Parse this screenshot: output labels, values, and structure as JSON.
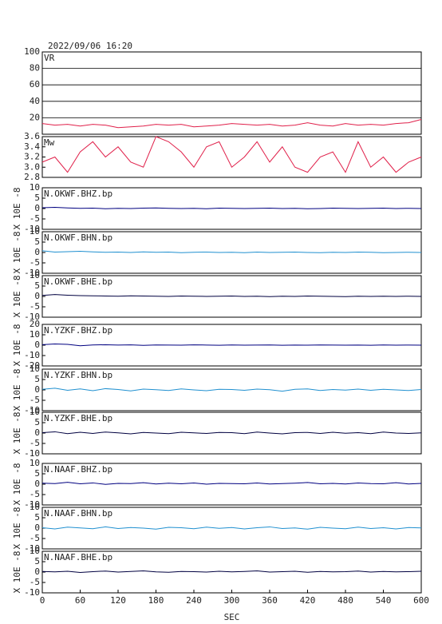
{
  "chart_data": [
    {
      "type": "line",
      "title": "2022/09/06 16:20",
      "xlim": [
        0,
        600
      ],
      "ylim": [
        0,
        100
      ],
      "yticks": [
        20,
        40,
        60,
        80,
        100
      ],
      "grid": true,
      "x": [
        0,
        20,
        40,
        60,
        80,
        100,
        120,
        140,
        160,
        180,
        200,
        220,
        240,
        260,
        280,
        300,
        320,
        340,
        360,
        380,
        400,
        420,
        440,
        460,
        480,
        500,
        520,
        540,
        560,
        580,
        600
      ],
      "series": [
        {
          "name": "VR",
          "color": "#e0204a",
          "values": [
            13,
            11,
            12,
            10,
            12,
            11,
            8,
            9,
            10,
            12,
            11,
            12,
            9,
            10,
            11,
            13,
            12,
            11,
            12,
            10,
            11,
            14,
            11,
            10,
            13,
            11,
            12,
            11,
            13,
            14,
            18
          ]
        }
      ]
    },
    {
      "type": "line",
      "xlim": [
        0,
        600
      ],
      "ylim": [
        2.8,
        3.6
      ],
      "yticks": [
        2.8,
        {
          "value": 3,
          "label": "3.0"
        },
        3.2,
        3.4,
        3.6
      ],
      "x": [
        0,
        20,
        40,
        60,
        80,
        100,
        120,
        140,
        160,
        180,
        200,
        220,
        240,
        260,
        280,
        300,
        320,
        340,
        360,
        380,
        400,
        420,
        440,
        460,
        480,
        500,
        520,
        540,
        560,
        580,
        600
      ],
      "series": [
        {
          "name": "Mw",
          "color": "#e0204a",
          "values": [
            3.1,
            3.2,
            2.9,
            3.3,
            3.5,
            3.2,
            3.4,
            3.1,
            3.0,
            3.6,
            3.5,
            3.3,
            3.0,
            3.4,
            3.5,
            3.0,
            3.2,
            3.5,
            3.1,
            3.4,
            3.0,
            2.9,
            3.2,
            3.3,
            2.9,
            3.5,
            3.0,
            3.2,
            2.9,
            3.1,
            3.2
          ]
        }
      ]
    },
    {
      "type": "line",
      "xlim": [
        0,
        600
      ],
      "ylim": [
        -10,
        10
      ],
      "yticks": [
        -10,
        -5,
        0,
        5,
        10
      ],
      "ylabel": "X 10E -8",
      "x": [
        0,
        20,
        40,
        60,
        80,
        100,
        120,
        140,
        160,
        180,
        200,
        220,
        240,
        260,
        280,
        300,
        320,
        340,
        360,
        380,
        400,
        420,
        440,
        460,
        480,
        500,
        520,
        540,
        560,
        580,
        600
      ],
      "series": [
        {
          "name": "N.OKWF.BHZ.bp",
          "color": "#000080",
          "values": [
            0.4,
            0.6,
            0.3,
            0.1,
            0.2,
            -0.1,
            0.1,
            0.0,
            0.2,
            0.3,
            0.1,
            0.0,
            0.1,
            -0.1,
            0.2,
            0.1,
            0.0,
            0.1,
            0.2,
            0.0,
            0.1,
            -0.1,
            0.0,
            0.2,
            0.1,
            0.0,
            0.1,
            0.2,
            0.0,
            0.1,
            0.0
          ]
        }
      ]
    },
    {
      "type": "line",
      "xlim": [
        0,
        600
      ],
      "ylim": [
        -10,
        10
      ],
      "yticks": [
        -10,
        -5,
        0,
        5,
        10
      ],
      "ylabel": "X 10E -8",
      "x": [
        0,
        20,
        40,
        60,
        80,
        100,
        120,
        140,
        160,
        180,
        200,
        220,
        240,
        260,
        280,
        300,
        320,
        340,
        360,
        380,
        400,
        420,
        440,
        460,
        480,
        500,
        520,
        540,
        560,
        580,
        600
      ],
      "series": [
        {
          "name": "N.OKWF.BHN.bp",
          "color": "#2090d0",
          "values": [
            0.8,
            0.2,
            0.4,
            0.6,
            0.3,
            0.1,
            0.2,
            0.0,
            0.3,
            0.1,
            0.2,
            -0.1,
            0.1,
            0.2,
            0.0,
            0.1,
            -0.1,
            0.2,
            0.0,
            0.1,
            0.2,
            0.0,
            -0.1,
            0.1,
            0.0,
            0.2,
            0.1,
            -0.1,
            0.0,
            0.1,
            0.0
          ]
        }
      ]
    },
    {
      "type": "line",
      "xlim": [
        0,
        600
      ],
      "ylim": [
        -10,
        10
      ],
      "yticks": [
        -10,
        -5,
        0,
        5,
        10
      ],
      "ylabel": "X 10E -8",
      "x": [
        0,
        20,
        40,
        60,
        80,
        100,
        120,
        140,
        160,
        180,
        200,
        220,
        240,
        260,
        280,
        300,
        320,
        340,
        360,
        380,
        400,
        420,
        440,
        460,
        480,
        500,
        520,
        540,
        560,
        580,
        600
      ],
      "series": [
        {
          "name": "N.OKWF.BHE.bp",
          "color": "#000040",
          "values": [
            0.5,
            0.9,
            0.6,
            0.4,
            0.3,
            0.2,
            0.1,
            0.3,
            0.2,
            0.1,
            0.0,
            0.2,
            0.1,
            0.0,
            0.1,
            0.2,
            0.0,
            0.1,
            -0.1,
            0.1,
            0.0,
            0.2,
            0.1,
            0.0,
            -0.1,
            0.1,
            0.0,
            0.1,
            0.0,
            0.1,
            0.0
          ]
        }
      ]
    },
    {
      "type": "line",
      "xlim": [
        0,
        600
      ],
      "ylim": [
        -20,
        20
      ],
      "yticks": [
        -20,
        -10,
        0,
        10,
        20
      ],
      "ylabel": "X 10E -8",
      "x": [
        0,
        20,
        40,
        60,
        80,
        100,
        120,
        140,
        160,
        180,
        200,
        220,
        240,
        260,
        280,
        300,
        320,
        340,
        360,
        380,
        400,
        420,
        440,
        460,
        480,
        500,
        520,
        540,
        560,
        580,
        600
      ],
      "series": [
        {
          "name": "N.YZKF.BHZ.bp",
          "color": "#000080",
          "values": [
            0.5,
            1.2,
            0.8,
            -0.6,
            0.2,
            0.4,
            0.1,
            0.3,
            -0.2,
            0.2,
            0.1,
            0.0,
            0.3,
            0.1,
            -0.1,
            0.2,
            0.0,
            0.1,
            0.2,
            -0.1,
            0.1,
            0.0,
            0.2,
            0.1,
            0.0,
            0.1,
            -0.1,
            0.2,
            0.0,
            0.1,
            0.0
          ]
        }
      ]
    },
    {
      "type": "line",
      "xlim": [
        0,
        600
      ],
      "ylim": [
        -10,
        10
      ],
      "yticks": [
        -10,
        -5,
        0,
        5,
        10
      ],
      "ylabel": "X 10E -8",
      "x": [
        0,
        20,
        40,
        60,
        80,
        100,
        120,
        140,
        160,
        180,
        200,
        220,
        240,
        260,
        280,
        300,
        320,
        340,
        360,
        380,
        400,
        420,
        440,
        460,
        480,
        500,
        520,
        540,
        560,
        580,
        600
      ],
      "series": [
        {
          "name": "N.YZKF.BHN.bp",
          "color": "#2090d0",
          "values": [
            0.3,
            0.8,
            -0.2,
            0.5,
            -0.4,
            0.6,
            0.2,
            -0.5,
            0.4,
            0.1,
            -0.3,
            0.5,
            0.0,
            -0.4,
            0.3,
            0.2,
            -0.2,
            0.4,
            0.1,
            -0.6,
            0.3,
            0.5,
            -0.3,
            0.2,
            -0.1,
            0.4,
            -0.2,
            0.3,
            0.0,
            -0.3,
            0.2
          ]
        }
      ]
    },
    {
      "type": "line",
      "xlim": [
        0,
        600
      ],
      "ylim": [
        -10,
        10
      ],
      "yticks": [
        -10,
        -5,
        0,
        5,
        10
      ],
      "ylabel": "X 10E -8",
      "x": [
        0,
        20,
        40,
        60,
        80,
        100,
        120,
        140,
        160,
        180,
        200,
        220,
        240,
        260,
        280,
        300,
        320,
        340,
        360,
        380,
        400,
        420,
        440,
        460,
        480,
        500,
        520,
        540,
        560,
        580,
        600
      ],
      "series": [
        {
          "name": "N.YZKF.BHE.bp",
          "color": "#000040",
          "values": [
            0.2,
            0.6,
            -0.3,
            0.4,
            -0.2,
            0.5,
            0.1,
            -0.4,
            0.3,
            0.0,
            -0.3,
            0.4,
            0.1,
            -0.2,
            0.3,
            0.2,
            -0.3,
            0.5,
            0.0,
            -0.4,
            0.2,
            0.3,
            -0.2,
            0.4,
            -0.1,
            0.2,
            -0.3,
            0.5,
            0.0,
            -0.2,
            0.1
          ]
        }
      ]
    },
    {
      "type": "line",
      "xlim": [
        0,
        600
      ],
      "ylim": [
        -10,
        10
      ],
      "yticks": [
        -10,
        -5,
        0,
        5,
        10
      ],
      "ylabel": "X 10E -8",
      "x": [
        0,
        20,
        40,
        60,
        80,
        100,
        120,
        140,
        160,
        180,
        200,
        220,
        240,
        260,
        280,
        300,
        320,
        340,
        360,
        380,
        400,
        420,
        440,
        460,
        480,
        500,
        520,
        540,
        560,
        580,
        600
      ],
      "series": [
        {
          "name": "N.NAAF.BHZ.bp",
          "color": "#000080",
          "values": [
            0.5,
            0.3,
            0.9,
            0.2,
            0.6,
            -0.1,
            0.4,
            0.3,
            0.7,
            0.1,
            0.5,
            0.2,
            0.6,
            0.0,
            0.4,
            0.3,
            0.2,
            0.6,
            0.1,
            0.3,
            0.5,
            0.8,
            0.2,
            0.4,
            0.1,
            0.6,
            0.3,
            0.2,
            0.7,
            0.1,
            0.4
          ]
        }
      ]
    },
    {
      "type": "line",
      "xlim": [
        0,
        600
      ],
      "ylim": [
        -10,
        10
      ],
      "yticks": [
        -10,
        -5,
        0,
        5,
        10
      ],
      "ylabel": "X 10E -8",
      "x": [
        0,
        20,
        40,
        60,
        80,
        100,
        120,
        140,
        160,
        180,
        200,
        220,
        240,
        260,
        280,
        300,
        320,
        340,
        360,
        380,
        400,
        420,
        440,
        460,
        480,
        500,
        520,
        540,
        560,
        580,
        600
      ],
      "series": [
        {
          "name": "N.NAAF.BHN.bp",
          "color": "#2090d0",
          "values": [
            0.2,
            -0.4,
            0.5,
            0.1,
            -0.3,
            0.6,
            -0.2,
            0.3,
            0.0,
            -0.5,
            0.4,
            0.2,
            -0.3,
            0.5,
            -0.1,
            0.3,
            -0.4,
            0.2,
            0.6,
            -0.2,
            0.1,
            -0.5,
            0.4,
            0.0,
            -0.3,
            0.5,
            -0.2,
            0.2,
            -0.4,
            0.3,
            0.1
          ]
        }
      ]
    },
    {
      "type": "line",
      "xlim": [
        0,
        600
      ],
      "ylim": [
        -10,
        10
      ],
      "yticks": [
        -10,
        -5,
        0,
        5,
        10
      ],
      "ylabel": "X 10E -8",
      "xlabel": "SEC",
      "xticks": [
        0,
        60,
        120,
        180,
        240,
        300,
        360,
        420,
        480,
        540,
        600
      ],
      "x": [
        0,
        20,
        40,
        60,
        80,
        100,
        120,
        140,
        160,
        180,
        200,
        220,
        240,
        260,
        280,
        300,
        320,
        340,
        360,
        380,
        400,
        420,
        440,
        460,
        480,
        500,
        520,
        540,
        560,
        580,
        600
      ],
      "series": [
        {
          "name": "N.NAAF.BHE.bp",
          "color": "#000040",
          "values": [
            0.3,
            0.1,
            0.4,
            -0.2,
            0.2,
            0.5,
            0.0,
            0.3,
            0.6,
            0.1,
            -0.1,
            0.3,
            0.2,
            0.0,
            0.4,
            0.1,
            0.3,
            0.6,
            0.0,
            0.2,
            0.4,
            -0.1,
            0.3,
            0.1,
            0.2,
            0.5,
            0.0,
            0.3,
            0.1,
            0.2,
            0.4
          ]
        }
      ]
    }
  ]
}
